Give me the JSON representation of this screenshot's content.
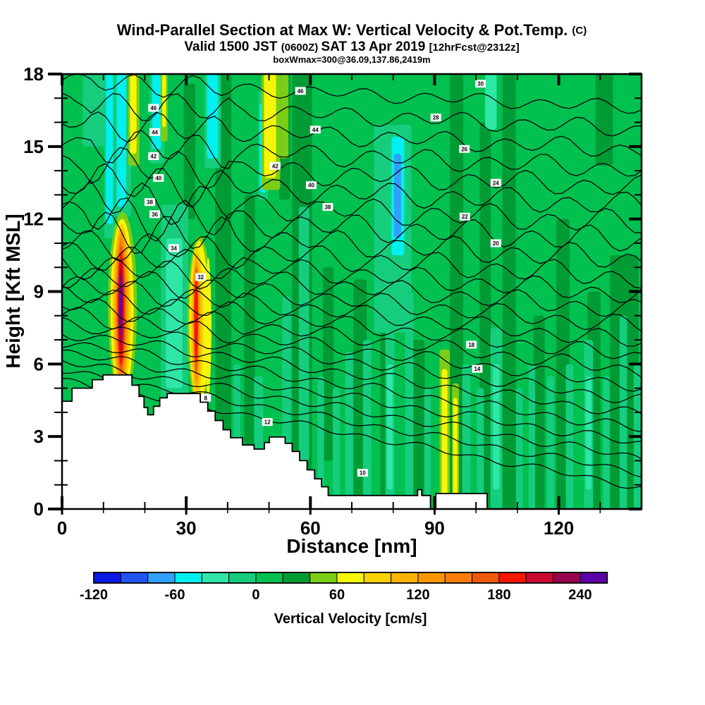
{
  "title": {
    "line1_main": "Wind-Parallel Section at Max W: Vertical Velocity & Pot.Temp.",
    "line1_unit": "(C)",
    "line2_a": "Valid 1500 JST ",
    "line2_b": "(0600Z) ",
    "line2_c": "SAT 13 Apr 2019 ",
    "line2_d": "[12hrFcst@2312z]",
    "line3": "boxWmax=300@36.09,137.86,2419m"
  },
  "axes": {
    "x": {
      "label": "Distance [nm]",
      "majors": [
        0,
        30,
        60,
        90,
        120
      ],
      "minors": [
        10,
        20,
        40,
        50,
        70,
        80,
        100,
        110,
        130
      ],
      "min": 0,
      "max": 140
    },
    "y": {
      "label": "Height [Kft MSL]",
      "majors": [
        0,
        3,
        6,
        9,
        12,
        15,
        18
      ],
      "minors": [
        1,
        2,
        4,
        5,
        7,
        8,
        10,
        11,
        13,
        14,
        16,
        17
      ],
      "min": 0,
      "max": 18
    }
  },
  "colorbar": {
    "label": "Vertical Velocity [cm/s]",
    "tick_values": [
      -120,
      -60,
      0,
      60,
      120,
      180,
      240
    ],
    "level_min": -120,
    "level_step": 20,
    "colors": [
      "#0a19e6",
      "#2055f0",
      "#30a0fa",
      "#00f0f0",
      "#2ee6a6",
      "#16cd7e",
      "#00c050",
      "#009b35",
      "#7ccd16",
      "#f5f50a",
      "#fad200",
      "#fab400",
      "#fa9600",
      "#fa7d0a",
      "#f0590a",
      "#f51600",
      "#cd0a32",
      "#99004d",
      "#5c00a8"
    ]
  },
  "chart_data": {
    "type": "heatmap",
    "title": "Wind-Parallel Section at Max W: Vertical Velocity & Pot.Temp. (C)",
    "xlabel": "Distance [nm]",
    "ylabel": "Height [Kft MSL]",
    "xlim": [
      0,
      140
    ],
    "ylim": [
      0,
      18
    ],
    "background_color_index": 6,
    "streaks": [
      [
        37.0,
        40.9,
        0,
        18,
        7
      ],
      [
        29.4,
        32.2,
        12.0,
        17.6,
        7
      ],
      [
        44.0,
        46.6,
        0,
        13,
        7
      ],
      [
        55.6,
        60.4,
        0,
        18,
        7
      ],
      [
        63.0,
        65.6,
        2,
        10,
        7
      ],
      [
        70.4,
        73.6,
        0,
        9.5,
        7
      ],
      [
        76.9,
        79.6,
        0,
        8,
        7
      ],
      [
        84.4,
        87.6,
        0,
        7,
        7
      ],
      [
        93.7,
        96.9,
        0,
        18,
        7
      ],
      [
        100.9,
        103.6,
        0,
        16,
        7
      ],
      [
        106.4,
        109.6,
        0,
        18,
        7
      ],
      [
        113.9,
        116.6,
        0,
        8,
        7
      ],
      [
        119.4,
        122.6,
        0,
        12,
        7
      ],
      [
        126.9,
        130.1,
        0,
        9,
        7
      ],
      [
        132.4,
        139.3,
        0,
        10.5,
        7
      ],
      [
        128.9,
        133.1,
        14.2,
        18,
        7
      ],
      [
        52.4,
        55.1,
        12.8,
        18,
        7
      ],
      [
        5.0,
        10.8,
        15,
        18,
        5
      ],
      [
        10.2,
        12.7,
        11.2,
        18,
        5
      ],
      [
        12.8,
        16.7,
        12.1,
        18,
        5
      ],
      [
        21.2,
        24.7,
        14.3,
        18,
        5
      ],
      [
        23.9,
        30.5,
        4.4,
        12.6,
        5
      ],
      [
        34.4,
        38.4,
        14.1,
        18,
        5
      ],
      [
        47.4,
        49.8,
        12.8,
        17.3,
        5
      ],
      [
        75.4,
        84.4,
        7.3,
        15.9,
        5
      ],
      [
        57.2,
        59.7,
        2,
        12.5,
        5
      ],
      [
        53.2,
        55.3,
        0,
        8.8,
        5
      ],
      [
        61.7,
        63.3,
        0,
        5.5,
        5
      ],
      [
        65.4,
        67.1,
        0,
        5,
        5
      ],
      [
        68.4,
        70.3,
        0,
        6.5,
        5
      ],
      [
        72.7,
        74.7,
        0,
        7,
        5
      ],
      [
        78.1,
        80.3,
        0,
        7.5,
        5
      ],
      [
        82.9,
        84.9,
        0,
        9,
        5
      ],
      [
        87.5,
        89.1,
        0,
        5,
        5
      ],
      [
        96.7,
        98.7,
        0,
        6,
        5
      ],
      [
        100.2,
        101.9,
        0,
        5,
        5
      ],
      [
        103.5,
        106.3,
        0,
        7.5,
        5
      ],
      [
        109.7,
        111.3,
        0,
        5,
        5
      ],
      [
        112.7,
        114.3,
        0,
        6,
        5
      ],
      [
        117.1,
        118.9,
        0,
        5.5,
        5
      ],
      [
        121.7,
        123.5,
        0,
        6,
        5
      ],
      [
        126.1,
        128.3,
        0,
        7,
        5
      ],
      [
        130.7,
        132.3,
        0,
        5.5,
        5
      ],
      [
        134.7,
        136.5,
        0,
        8,
        5
      ],
      [
        138.1,
        139.7,
        0,
        6,
        5
      ],
      [
        41.4,
        43.1,
        0,
        6,
        5
      ],
      [
        46.4,
        48.6,
        2.5,
        5.5,
        5
      ],
      [
        25.1,
        29.1,
        5,
        11.2,
        4
      ],
      [
        78.5,
        79.9,
        0.8,
        6,
        4
      ],
      [
        104.1,
        105.7,
        0.8,
        6,
        4
      ],
      [
        126.5,
        127.9,
        0.8,
        5.5,
        4
      ],
      [
        102.2,
        105.0,
        15.7,
        18,
        4
      ],
      [
        10.6,
        12.3,
        11.8,
        18,
        3
      ],
      [
        13.2,
        15.5,
        12.5,
        18,
        3
      ],
      [
        21.8,
        23.9,
        14.9,
        18,
        3
      ],
      [
        35.0,
        37.7,
        14.5,
        18,
        3
      ],
      [
        47.8,
        49.4,
        13.1,
        16.8,
        3
      ],
      [
        79.6,
        82.7,
        10.5,
        15.4,
        3
      ],
      [
        80.2,
        81.9,
        11.2,
        14.7,
        2
      ],
      [
        16.0,
        18.7,
        14.2,
        18,
        8
      ],
      [
        23.8,
        25.5,
        15.2,
        18,
        8
      ],
      [
        48.2,
        52.7,
        13.2,
        18,
        8
      ],
      [
        52.7,
        54.7,
        14.5,
        18,
        8
      ],
      [
        91.2,
        93.7,
        0,
        6.6,
        8
      ],
      [
        94.2,
        95.9,
        0,
        5.2,
        8
      ],
      [
        16.4,
        18.0,
        14.7,
        18,
        9
      ],
      [
        48.8,
        51.7,
        13.7,
        18,
        9
      ],
      [
        91.7,
        93.1,
        0,
        5.8,
        9
      ],
      [
        94.5,
        95.5,
        0,
        4.6,
        9
      ],
      [
        24.2,
        25.1,
        15.8,
        18,
        9
      ]
    ],
    "plumes": [
      [
        14.6,
        8.4,
        3.5,
        3.9,
        8
      ],
      [
        14.5,
        8.3,
        2.8,
        3.7,
        9
      ],
      [
        14.4,
        8.3,
        2.2,
        3.5,
        10
      ],
      [
        14.35,
        8.3,
        1.8,
        3.3,
        11
      ],
      [
        14.3,
        8.3,
        1.45,
        3.1,
        12
      ],
      [
        14.3,
        8.3,
        1.18,
        2.9,
        13
      ],
      [
        14.25,
        8.3,
        0.97,
        2.6,
        14
      ],
      [
        14.25,
        8.3,
        0.8,
        2.35,
        15
      ],
      [
        14.2,
        8.35,
        0.62,
        2.0,
        16
      ],
      [
        14.2,
        8.4,
        0.46,
        1.6,
        17
      ],
      [
        14.2,
        8.45,
        0.3,
        1.25,
        18
      ],
      [
        33.2,
        7.7,
        2.95,
        3.6,
        8
      ],
      [
        33.1,
        7.7,
        2.35,
        3.4,
        9
      ],
      [
        32.6,
        7.7,
        1.55,
        3.1,
        10
      ],
      [
        32.5,
        7.7,
        1.1,
        2.8,
        11
      ],
      [
        32.45,
        7.75,
        0.78,
        2.5,
        12
      ],
      [
        32.4,
        7.8,
        0.56,
        2.2,
        14
      ],
      [
        32.4,
        7.9,
        0.4,
        1.8,
        15
      ],
      [
        35.3,
        7.5,
        0.75,
        2.9,
        9
      ]
    ],
    "terrain": [
      [
        [
          0,
          4.46
        ],
        [
          2.4,
          4.46
        ],
        [
          2.4,
          5.0
        ],
        [
          7.3,
          5.0
        ],
        [
          7.3,
          5.35
        ],
        [
          9.9,
          5.35
        ],
        [
          9.9,
          5.55
        ],
        [
          16.9,
          5.55
        ],
        [
          16.9,
          5.12
        ],
        [
          18.6,
          5.12
        ],
        [
          18.6,
          4.66
        ],
        [
          19.8,
          4.66
        ],
        [
          19.8,
          4.2
        ],
        [
          20.7,
          4.2
        ],
        [
          20.7,
          3.9
        ],
        [
          22.1,
          3.9
        ],
        [
          22.1,
          4.25
        ],
        [
          23.6,
          4.25
        ],
        [
          23.6,
          4.6
        ],
        [
          25.4,
          4.6
        ],
        [
          25.4,
          4.78
        ],
        [
          33.4,
          4.78
        ],
        [
          33.4,
          4.42
        ],
        [
          35.2,
          4.42
        ],
        [
          35.2,
          4.05
        ],
        [
          37.0,
          4.05
        ],
        [
          37.0,
          3.66
        ],
        [
          38.9,
          3.66
        ],
        [
          38.9,
          3.28
        ],
        [
          40.7,
          3.28
        ],
        [
          40.7,
          2.95
        ],
        [
          43.6,
          2.95
        ],
        [
          43.6,
          2.65
        ],
        [
          46.4,
          2.65
        ],
        [
          46.4,
          2.48
        ],
        [
          48.9,
          2.48
        ],
        [
          48.9,
          2.75
        ],
        [
          50.1,
          2.75
        ],
        [
          50.1,
          2.98
        ],
        [
          53.9,
          2.98
        ],
        [
          53.9,
          2.72
        ],
        [
          55.6,
          2.72
        ],
        [
          55.6,
          2.38
        ],
        [
          57.4,
          2.38
        ],
        [
          57.4,
          2.0
        ],
        [
          59.2,
          2.0
        ],
        [
          59.2,
          1.62
        ],
        [
          61.0,
          1.62
        ],
        [
          61.0,
          1.25
        ],
        [
          62.7,
          1.25
        ],
        [
          62.7,
          0.92
        ],
        [
          64.3,
          0.92
        ],
        [
          64.3,
          0.56
        ],
        [
          85.9,
          0.56
        ],
        [
          85.9,
          0.8
        ],
        [
          86.9,
          0.8
        ],
        [
          86.9,
          0.56
        ],
        [
          89.0,
          0.56
        ],
        [
          89.0,
          0
        ]
      ],
      [
        [
          90.3,
          0
        ],
        [
          90.3,
          0.64
        ],
        [
          102.7,
          0.64
        ],
        [
          102.7,
          0
        ]
      ]
    ],
    "contours": [
      [
        17.75,
        16.6,
        0.22
      ],
      [
        16.85,
        15.7,
        0.28
      ],
      [
        16.0,
        14.85,
        0.3
      ],
      [
        15.15,
        14.05,
        0.33
      ],
      [
        14.35,
        13.3,
        0.36
      ],
      [
        13.6,
        12.55,
        0.38
      ],
      [
        12.9,
        11.8,
        0.4
      ],
      [
        12.25,
        11.05,
        0.42
      ],
      [
        11.65,
        10.3,
        0.4
      ],
      [
        11.1,
        9.55,
        0.38
      ],
      [
        10.6,
        8.85,
        0.34
      ],
      [
        10.15,
        8.2,
        0.32
      ],
      [
        9.7,
        7.55,
        0.3
      ],
      [
        9.3,
        6.9,
        0.28
      ],
      [
        8.9,
        6.3,
        0.26
      ],
      [
        8.5,
        5.7,
        0.24
      ],
      [
        8.1,
        5.1,
        0.22
      ],
      [
        7.7,
        4.5,
        0.2
      ],
      [
        7.3,
        3.9,
        0.18
      ],
      [
        6.9,
        3.3,
        0.17
      ],
      [
        6.5,
        2.7,
        0.16
      ],
      [
        6.1,
        2.1,
        0.15
      ],
      [
        5.7,
        1.5,
        0.13
      ],
      [
        5.3,
        0.9,
        0.12
      ]
    ],
    "contour_labels": [
      [
        46,
        22.1,
        16.6
      ],
      [
        44,
        22.4,
        15.6
      ],
      [
        42,
        22.1,
        14.6
      ],
      [
        40,
        23.3,
        13.7
      ],
      [
        38,
        21.2,
        12.7
      ],
      [
        36,
        22.4,
        12.2
      ],
      [
        34,
        27.0,
        10.8
      ],
      [
        32,
        33.5,
        9.6
      ],
      [
        46,
        57.6,
        17.3
      ],
      [
        44,
        61.2,
        15.7
      ],
      [
        42,
        51.5,
        14.2
      ],
      [
        40,
        60.2,
        13.4
      ],
      [
        38,
        64.2,
        12.5
      ],
      [
        30,
        101.1,
        17.6
      ],
      [
        28,
        90.3,
        16.2
      ],
      [
        26,
        97.2,
        14.9
      ],
      [
        24,
        104.8,
        13.5
      ],
      [
        22,
        97.3,
        12.1
      ],
      [
        20,
        104.8,
        11.0
      ],
      [
        18,
        98.9,
        6.8
      ],
      [
        14,
        100.3,
        5.8
      ],
      [
        12,
        49.6,
        3.6
      ],
      [
        10,
        72.6,
        1.5
      ],
      [
        8,
        34.7,
        4.6
      ]
    ]
  }
}
